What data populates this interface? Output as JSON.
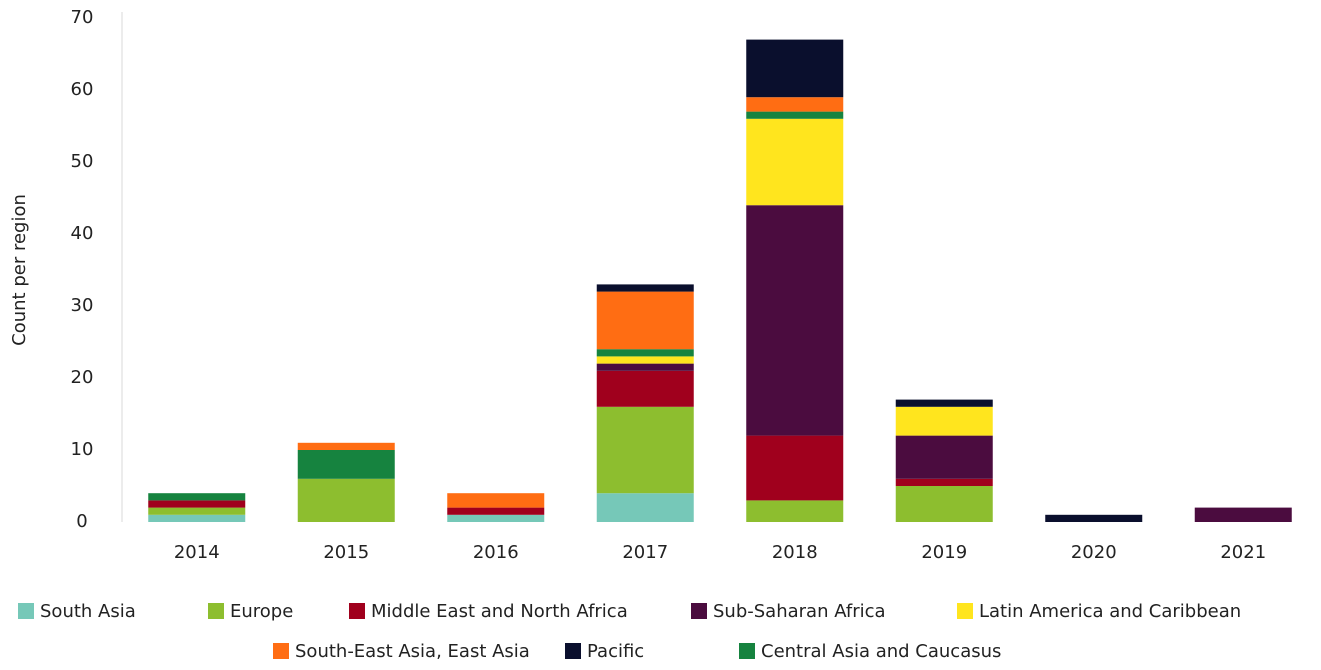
{
  "chart_data": {
    "type": "stacked_bar",
    "y_label": "Count per region",
    "categories": [
      "2014",
      "2015",
      "2016",
      "2017",
      "2018",
      "2019",
      "2020",
      "2021"
    ],
    "series": [
      {
        "name": "South Asia",
        "color": "#76c8b8",
        "values": [
          1,
          0,
          1,
          4,
          0,
          0,
          0,
          0
        ]
      },
      {
        "name": "Europe",
        "color": "#8dbe2f",
        "values": [
          1,
          6,
          0,
          12,
          3,
          5,
          0,
          0
        ]
      },
      {
        "name": "Middle East and North Africa",
        "color": "#a0001d",
        "values": [
          1,
          0,
          1,
          5,
          9,
          1,
          0,
          0
        ]
      },
      {
        "name": "Sub-Saharan Africa",
        "color": "#4b0c3f",
        "values": [
          0,
          0,
          0,
          1,
          32,
          6,
          0,
          2
        ]
      },
      {
        "name": "Latin America and Caribbean",
        "color": "#ffe51e",
        "values": [
          0,
          0,
          0,
          1,
          12,
          4,
          0,
          0
        ]
      },
      {
        "name": "Central Asia and Caucasus",
        "color": "#16833f",
        "values": [
          1,
          4,
          0,
          1,
          1,
          0,
          0,
          0
        ]
      },
      {
        "name": "South-East Asia, East Asia",
        "color": "#ff6d13",
        "values": [
          0,
          1,
          2,
          8,
          2,
          0,
          0,
          0
        ]
      },
      {
        "name": "Pacific",
        "color": "#0a0f2d",
        "values": [
          0,
          0,
          0,
          1,
          8,
          1,
          1,
          0
        ]
      }
    ],
    "ylim": [
      0,
      70
    ],
    "yticks": [
      0,
      10,
      20,
      30,
      40,
      50,
      60,
      70
    ],
    "grid": false
  }
}
